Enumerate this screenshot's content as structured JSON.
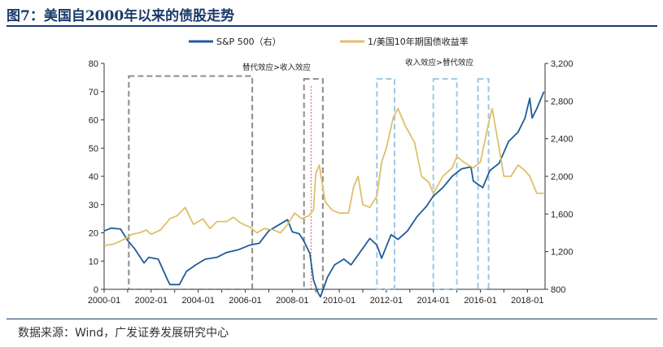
{
  "title": "图7：美国自2000年以来的债股走势",
  "source": "数据来源：Wind，广发证券发展研究中心",
  "chart_data": {
    "type": "line",
    "title": "图7：美国自2000年以来的债股走势",
    "legend_position": "top",
    "annotations": [
      "替代效应>收入效应",
      "收入效应>替代效应"
    ],
    "x_ticks": [
      "2000-01",
      "2002-01",
      "2004-01",
      "2006-01",
      "2008-01",
      "2010-01",
      "2012-01",
      "2014-01",
      "2016-01",
      "2018-01"
    ],
    "x_range": [
      2000.0,
      2018.75
    ],
    "y_left": {
      "ylim": [
        0,
        80
      ],
      "ticks": [
        "0",
        "10",
        "20",
        "30",
        "40",
        "50",
        "60",
        "70",
        "80"
      ]
    },
    "y_right": {
      "ylim": [
        800,
        3200
      ],
      "ticks": [
        "800",
        "1,200",
        "1,600",
        "2,000",
        "2,400",
        "2,800",
        "3,200"
      ]
    },
    "colors": {
      "sp500": "#1f5c99",
      "bond": "#e0bf6b",
      "box_gray": "#8c8c8c",
      "box_blue": "#9ec7e4",
      "vline": "#e05050",
      "axis": "#333333"
    },
    "series": [
      {
        "name": "S&P 500（右）",
        "axis": "right",
        "x": [
          2000.0,
          2000.3,
          2000.7,
          2001.0,
          2001.3,
          2001.7,
          2001.9,
          2002.3,
          2002.7,
          2002.8,
          2003.2,
          2003.5,
          2003.9,
          2004.3,
          2004.8,
          2005.2,
          2005.7,
          2006.2,
          2006.6,
          2007.0,
          2007.4,
          2007.8,
          2008.0,
          2008.3,
          2008.5,
          2008.75,
          2008.9,
          2009.1,
          2009.2,
          2009.5,
          2009.8,
          2010.2,
          2010.5,
          2010.9,
          2011.3,
          2011.6,
          2011.8,
          2012.2,
          2012.5,
          2012.9,
          2013.3,
          2013.7,
          2014.0,
          2014.4,
          2014.8,
          2015.2,
          2015.6,
          2015.7,
          2016.1,
          2016.4,
          2016.8,
          2017.2,
          2017.6,
          2017.9,
          2018.1,
          2018.2,
          2018.4,
          2018.7
        ],
        "values": [
          1420,
          1450,
          1440,
          1320,
          1230,
          1080,
          1140,
          1120,
          900,
          850,
          850,
          990,
          1060,
          1120,
          1140,
          1190,
          1220,
          1270,
          1290,
          1420,
          1480,
          1540,
          1410,
          1390,
          1310,
          1180,
          900,
          760,
          720,
          930,
          1060,
          1120,
          1060,
          1200,
          1340,
          1270,
          1130,
          1380,
          1330,
          1420,
          1570,
          1680,
          1790,
          1880,
          2000,
          2080,
          2100,
          1950,
          1880,
          2060,
          2140,
          2370,
          2470,
          2620,
          2830,
          2620,
          2720,
          2900
        ]
      },
      {
        "name": "1/美国10年期国债收益率",
        "axis": "left",
        "x": [
          2000.0,
          2000.4,
          2000.8,
          2001.2,
          2001.5,
          2001.8,
          2002.0,
          2002.4,
          2002.8,
          2003.1,
          2003.45,
          2003.8,
          2004.2,
          2004.5,
          2004.8,
          2005.2,
          2005.5,
          2005.8,
          2006.2,
          2006.5,
          2006.8,
          2007.2,
          2007.5,
          2007.8,
          2008.1,
          2008.4,
          2008.7,
          2008.9,
          2009.0,
          2009.15,
          2009.4,
          2009.7,
          2010.0,
          2010.4,
          2010.6,
          2010.8,
          2011.0,
          2011.3,
          2011.6,
          2011.8,
          2012.0,
          2012.3,
          2012.5,
          2012.8,
          2013.2,
          2013.5,
          2013.8,
          2014.0,
          2014.4,
          2014.8,
          2015.0,
          2015.3,
          2015.7,
          2016.0,
          2016.3,
          2016.5,
          2016.8,
          2017.0,
          2017.3,
          2017.6,
          2017.9,
          2018.1,
          2018.4,
          2018.7
        ],
        "values": [
          15.5,
          16,
          17.5,
          19.5,
          20,
          21,
          19.5,
          21,
          25,
          26,
          29,
          23,
          25,
          21.5,
          24,
          24,
          25.5,
          23.5,
          22,
          20,
          21.5,
          21,
          20,
          23,
          27,
          25,
          26,
          28,
          41,
          44,
          31,
          28,
          27,
          27,
          36,
          40,
          30,
          29,
          33,
          45,
          50,
          61,
          64,
          58,
          52,
          40,
          38,
          34,
          40,
          43,
          47,
          45,
          43,
          45,
          57,
          64,
          50,
          40,
          40,
          44,
          42,
          40,
          34,
          34
        ]
      }
    ],
    "boxes": [
      {
        "style": "gray",
        "x0": 2001.05,
        "x1": 2006.3,
        "y0": 0,
        "y1": 75.5
      },
      {
        "style": "gray",
        "x0": 2008.5,
        "x1": 2009.3,
        "y0": 0,
        "y1": 74.5
      },
      {
        "style": "blue",
        "x0": 2011.6,
        "x1": 2012.35,
        "y0": 0,
        "y1": 74.5
      },
      {
        "style": "blue",
        "x0": 2014.0,
        "x1": 2015.0,
        "y0": 0,
        "y1": 74.5
      },
      {
        "style": "blue",
        "x0": 2015.9,
        "x1": 2016.35,
        "y0": 0,
        "y1": 74.5
      }
    ],
    "vline_x": 2008.8
  }
}
